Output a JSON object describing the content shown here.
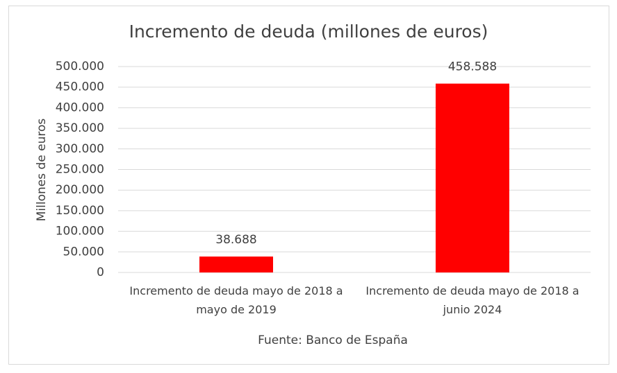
{
  "chart_data": {
    "type": "bar",
    "title": "Incremento de deuda (millones de euros)",
    "categories": [
      "Incremento de deuda mayo de 2018 a mayo de 2019",
      "Incremento de deuda mayo de 2018 a junio 2024"
    ],
    "values": [
      38688,
      458588
    ],
    "value_labels": [
      "38.688",
      "458.588"
    ],
    "color": "#ff0000",
    "ylabel": "Millones de euros",
    "xlabel": "Fuente: Banco de España",
    "ylim": [
      0,
      500000
    ],
    "yticks": [
      0,
      {
        "value": 50000,
        "label": "50.000"
      },
      {
        "value": 100000,
        "label": "100.000"
      },
      {
        "value": 150000,
        "label": "150.000"
      },
      {
        "value": 200000,
        "label": "200.000"
      },
      {
        "value": 250000,
        "label": "250.000"
      },
      {
        "value": 300000,
        "label": "300.000"
      },
      {
        "value": 350000,
        "label": "350.000"
      },
      {
        "value": 400000,
        "label": "400.000"
      },
      {
        "value": 450000,
        "label": "450.000"
      },
      {
        "value": 500000,
        "label": "500.000"
      }
    ],
    "grid": true
  }
}
